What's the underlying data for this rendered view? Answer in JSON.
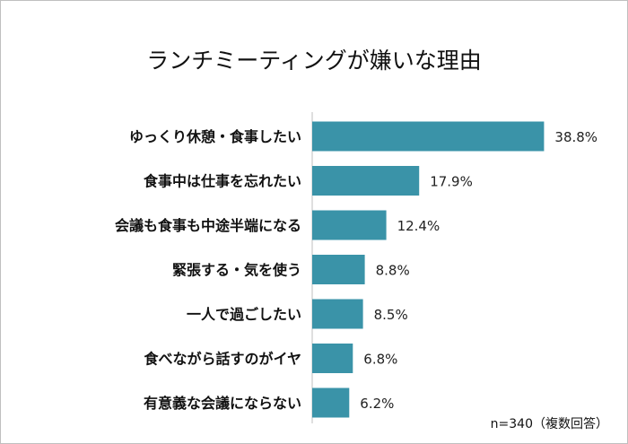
{
  "chart_data": {
    "type": "bar",
    "orientation": "horizontal",
    "title": "ランチミーティングが嫌いな理由",
    "categories": [
      "ゆっくり休憩・食事したい",
      "食事中は仕事を忘れたい",
      "会議も食事も中途半端になる",
      "緊張する・気を使う",
      "一人で過ごしたい",
      "食べながら話すのがイヤ",
      "有意義な会議にならない"
    ],
    "values": [
      38.8,
      17.9,
      12.4,
      8.8,
      8.5,
      6.8,
      6.2
    ],
    "value_labels": [
      "38.8%",
      "17.9%",
      "12.4%",
      "8.8%",
      "8.5%",
      "6.8%",
      "6.2%"
    ],
    "xlim": [
      0,
      40
    ],
    "grid": false,
    "bar_color": "#3a93a8",
    "note": "n=340（複数回答）"
  }
}
